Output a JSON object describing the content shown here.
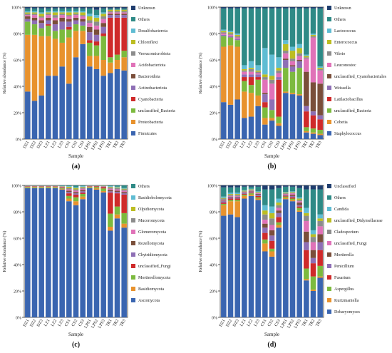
{
  "figure": {
    "panels": [
      {
        "id": "a",
        "caption": "(a)"
      },
      {
        "id": "b",
        "caption": "(b)"
      },
      {
        "id": "c",
        "caption": "(c)"
      },
      {
        "id": "d",
        "caption": "(d)"
      }
    ]
  },
  "chart_data": [
    {
      "id": "a",
      "type": "bar",
      "stacked": true,
      "caption": "(a)",
      "xlabel": "Sample",
      "ylabel": "Relative abundance (%)",
      "ylim": [
        0,
        100
      ],
      "yticks": [
        "0%",
        "20%",
        "40%",
        "60%",
        "80%",
        "100%"
      ],
      "categories": [
        "DZ1",
        "DZ2",
        "DZ3",
        "LZ1",
        "LZ2",
        "LZ3",
        "CS1",
        "CS2",
        "CS3",
        "LPS1",
        "LPS2",
        "LPS3",
        "TR1",
        "TR2",
        "TR3"
      ],
      "series": [
        {
          "name": "Firmicutes",
          "color": "#3a65b0",
          "values": [
            36,
            29,
            33,
            48,
            48,
            55,
            42,
            62,
            72,
            55,
            53,
            48,
            50,
            53,
            52
          ]
        },
        {
          "name": "Proteobacteria",
          "color": "#e8922d",
          "values": [
            43,
            50,
            45,
            30,
            28,
            18,
            35,
            20,
            10,
            8,
            10,
            12,
            8,
            7,
            10
          ]
        },
        {
          "name": "unclassified_Bacteria",
          "color": "#7cba3e",
          "values": [
            10,
            8,
            6,
            8,
            6,
            10,
            6,
            5,
            4,
            10,
            8,
            18,
            4,
            4,
            5
          ]
        },
        {
          "name": "Cyanobacteria",
          "color": "#cf2a2a",
          "values": [
            0,
            0,
            0,
            1,
            0,
            0,
            2,
            0,
            0,
            2,
            3,
            2,
            30,
            28,
            25
          ]
        },
        {
          "name": "Actinobacteriota",
          "color": "#8e6fb5",
          "values": [
            2,
            3,
            4,
            3,
            5,
            6,
            4,
            3,
            3,
            6,
            5,
            5,
            2,
            2,
            2
          ]
        },
        {
          "name": "Bacteroidota",
          "color": "#7a4e3a",
          "values": [
            2,
            2,
            2,
            2,
            3,
            3,
            2,
            2,
            2,
            4,
            4,
            3,
            1,
            1,
            1
          ]
        },
        {
          "name": "Acidobacteriota",
          "color": "#e072b8",
          "values": [
            1,
            2,
            2,
            2,
            2,
            2,
            2,
            2,
            2,
            3,
            3,
            3,
            1,
            1,
            1
          ]
        },
        {
          "name": "Verrucomicrobiota",
          "color": "#8c8c8c",
          "values": [
            1,
            1,
            1,
            1,
            2,
            1,
            1,
            1,
            1,
            2,
            3,
            2,
            1,
            1,
            1
          ]
        },
        {
          "name": "Chloroflexi",
          "color": "#bcbd22",
          "values": [
            1,
            1,
            2,
            1,
            2,
            1,
            2,
            1,
            2,
            3,
            3,
            2,
            1,
            1,
            1
          ]
        },
        {
          "name": "Desulfobacterota",
          "color": "#5fbcd3",
          "values": [
            1,
            1,
            1,
            1,
            1,
            1,
            1,
            1,
            1,
            2,
            2,
            1,
            0,
            0,
            0
          ]
        },
        {
          "name": "Others",
          "color": "#2e8a86",
          "values": [
            2,
            2,
            3,
            2,
            2,
            2,
            2,
            2,
            2,
            4,
            4,
            3,
            1,
            1,
            1
          ]
        },
        {
          "name": "Unknown",
          "color": "#1f3d6e",
          "values": [
            1,
            1,
            1,
            1,
            1,
            1,
            1,
            1,
            1,
            1,
            2,
            1,
            1,
            1,
            1
          ]
        }
      ]
    },
    {
      "id": "b",
      "type": "bar",
      "stacked": true,
      "caption": "(b)",
      "xlabel": "Sample",
      "ylabel": "Relative abundance (%)",
      "ylim": [
        0,
        100
      ],
      "yticks": [
        "0%",
        "20%",
        "40%",
        "60%",
        "80%",
        "100%"
      ],
      "categories": [
        "DZ1",
        "DZ2",
        "DZ3",
        "LZ1",
        "LZ2",
        "LZ3",
        "CS1",
        "CS2",
        "CS3",
        "LPS1",
        "LPS2",
        "LPS3",
        "TR1",
        "TR2",
        "TR3"
      ],
      "series": [
        {
          "name": "Staphylococcus",
          "color": "#3a65b0",
          "values": [
            28,
            26,
            30,
            16,
            17,
            25,
            11,
            14,
            10,
            35,
            34,
            33,
            5,
            4,
            3
          ]
        },
        {
          "name": "Cobetia",
          "color": "#e8922d",
          "values": [
            42,
            45,
            40,
            20,
            18,
            8,
            5,
            2,
            2,
            1,
            1,
            1,
            1,
            1,
            1
          ]
        },
        {
          "name": "unclassified_Bacteria",
          "color": "#7cba3e",
          "values": [
            8,
            6,
            5,
            8,
            6,
            12,
            8,
            6,
            5,
            18,
            16,
            20,
            3,
            3,
            3
          ]
        },
        {
          "name": "Latilactobacillus",
          "color": "#cf2a2a",
          "values": [
            0,
            0,
            0,
            3,
            6,
            2,
            4,
            0,
            28,
            0,
            0,
            0,
            12,
            10,
            8
          ]
        },
        {
          "name": "Weissella",
          "color": "#8e6fb5",
          "values": [
            1,
            1,
            1,
            2,
            2,
            2,
            6,
            8,
            2,
            6,
            4,
            5,
            4,
            3,
            3
          ]
        },
        {
          "name": "unclassified_Cyanobacteriales",
          "color": "#7a4e3a",
          "values": [
            0,
            0,
            0,
            0,
            0,
            0,
            1,
            0,
            0,
            1,
            1,
            1,
            26,
            22,
            24
          ]
        },
        {
          "name": "Leuconostoc",
          "color": "#e072b8",
          "values": [
            1,
            1,
            1,
            2,
            2,
            1,
            10,
            12,
            3,
            4,
            3,
            3,
            10,
            34,
            10
          ]
        },
        {
          "name": "Vibrio",
          "color": "#8c8c8c",
          "values": [
            1,
            1,
            1,
            1,
            2,
            1,
            2,
            3,
            2,
            2,
            2,
            2,
            1,
            1,
            1
          ]
        },
        {
          "name": "Enterococcus",
          "color": "#bcbd22",
          "values": [
            1,
            1,
            1,
            1,
            1,
            1,
            2,
            3,
            2,
            5,
            6,
            4,
            1,
            1,
            1
          ]
        },
        {
          "name": "Lactococcus",
          "color": "#5fbcd3",
          "values": [
            1,
            1,
            1,
            3,
            5,
            4,
            20,
            16,
            8,
            3,
            3,
            3,
            1,
            1,
            1
          ]
        },
        {
          "name": "Others",
          "color": "#2e8a86",
          "values": [
            16,
            17,
            19,
            43,
            40,
            43,
            30,
            35,
            37,
            24,
            29,
            27,
            35,
            19,
            44
          ]
        },
        {
          "name": "Unknown",
          "color": "#1f3d6e",
          "values": [
            1,
            1,
            1,
            1,
            1,
            1,
            1,
            1,
            1,
            1,
            1,
            1,
            1,
            1,
            1
          ]
        }
      ]
    },
    {
      "id": "c",
      "type": "bar",
      "stacked": true,
      "caption": "(c)",
      "xlabel": "Sample",
      "ylabel": "Relative abundance (%)",
      "ylim": [
        0,
        100
      ],
      "yticks": [
        "0%",
        "20%",
        "40%",
        "60%",
        "80%",
        "100%"
      ],
      "categories": [
        "DZ1",
        "DZ2",
        "DZ3",
        "LZ1",
        "LZ2",
        "LZ3",
        "CS1",
        "CS2",
        "CS3",
        "LPS1",
        "LPS2",
        "LPS3",
        "TR1",
        "TR2",
        "TR3"
      ],
      "series": [
        {
          "name": "Ascomycota",
          "color": "#3a65b0",
          "values": [
            98,
            98,
            98,
            98,
            98,
            97,
            88,
            85,
            90,
            98,
            97,
            95,
            66,
            75,
            68
          ]
        },
        {
          "name": "Basidiomycota",
          "color": "#e8922d",
          "values": [
            0.5,
            0.5,
            0.5,
            0.5,
            0.5,
            0.5,
            2,
            3,
            2,
            0.5,
            1,
            1,
            3,
            3,
            3
          ]
        },
        {
          "name": "Mortierellomycota",
          "color": "#7cba3e",
          "values": [
            0.5,
            0.5,
            0.5,
            0.5,
            0.5,
            0.5,
            2,
            3,
            2,
            0.5,
            1,
            2,
            10,
            6,
            8
          ]
        },
        {
          "name": "unclassified_Fungi",
          "color": "#cf2a2a",
          "values": [
            0.3,
            0.3,
            0.3,
            0.3,
            0.3,
            0.5,
            2,
            2,
            1,
            0.3,
            0.5,
            1,
            16,
            10,
            14
          ]
        },
        {
          "name": "Chytridiomycota",
          "color": "#8e6fb5",
          "values": [
            0.1,
            0.1,
            0.1,
            0.1,
            0.1,
            0.2,
            1,
            1,
            1,
            0.1,
            0.1,
            0.2,
            1,
            1,
            1
          ]
        },
        {
          "name": "Rozellomycota",
          "color": "#7a4e3a",
          "values": [
            0.1,
            0.1,
            0.1,
            0.1,
            0.1,
            0.2,
            1,
            1,
            1,
            0.1,
            0.1,
            0.2,
            1,
            1,
            1
          ]
        },
        {
          "name": "Glomeromycota",
          "color": "#e072b8",
          "values": [
            0.1,
            0.1,
            0.1,
            0.1,
            0.1,
            0.2,
            1,
            1,
            1,
            0.1,
            0.1,
            0.2,
            1,
            1,
            1
          ]
        },
        {
          "name": "Mucoromycota",
          "color": "#8c8c8c",
          "values": [
            0.1,
            0.1,
            0.1,
            0.1,
            0.1,
            0.2,
            1,
            1,
            1,
            0.1,
            0.1,
            0.2,
            1,
            1,
            1
          ]
        },
        {
          "name": "Olpidiomycota",
          "color": "#bcbd22",
          "values": [
            0.1,
            0.1,
            0.1,
            0.1,
            0.1,
            0.2,
            1,
            1,
            0.5,
            0.1,
            0.1,
            0.2,
            0.5,
            0.5,
            0.5
          ]
        },
        {
          "name": "Basidiobolomycota",
          "color": "#5fbcd3",
          "values": [
            0.1,
            0.1,
            0.1,
            0.1,
            0.1,
            0.2,
            0.5,
            0.5,
            0.5,
            0.1,
            0.1,
            0.2,
            0.5,
            0.5,
            0.5
          ]
        },
        {
          "name": "Others",
          "color": "#2e8a86",
          "values": [
            0.1,
            0.1,
            0.1,
            0.1,
            0.1,
            0.4,
            0.5,
            1.5,
            0.5,
            0.1,
            0.1,
            0.1,
            0.5,
            1,
            2
          ]
        }
      ]
    },
    {
      "id": "d",
      "type": "bar",
      "stacked": true,
      "caption": "(d)",
      "xlabel": "Sample",
      "ylabel": "Relative abundance (%)",
      "ylim": [
        0,
        100
      ],
      "yticks": [
        "0%",
        "20%",
        "40%",
        "60%",
        "80%",
        "100%"
      ],
      "categories": [
        "DZ1",
        "DZ2",
        "DZ3",
        "LZ1",
        "LZ2",
        "LZ3",
        "CS1",
        "CS2",
        "CS3",
        "LPS1",
        "LPS2",
        "LPS3",
        "TR1",
        "TR2",
        "TR3"
      ],
      "series": [
        {
          "name": "Debaryomyces",
          "color": "#3a65b0",
          "values": [
            77,
            78,
            76,
            90,
            92,
            89,
            50,
            46,
            68,
            90,
            88,
            80,
            28,
            20,
            30
          ]
        },
        {
          "name": "Kurtzmaniella",
          "color": "#e8922d",
          "values": [
            8,
            10,
            12,
            2,
            1,
            1,
            6,
            4,
            2,
            1,
            1,
            1,
            1,
            1,
            1
          ]
        },
        {
          "name": "Aspergillus",
          "color": "#7cba3e",
          "values": [
            1,
            1,
            1,
            1,
            1,
            1,
            3,
            2,
            2,
            1,
            1,
            2,
            8,
            10,
            8
          ]
        },
        {
          "name": "Fusarium",
          "color": "#cf2a2a",
          "values": [
            1,
            1,
            1,
            0.5,
            0.5,
            1,
            5,
            6,
            4,
            0.5,
            1,
            1,
            14,
            10,
            12
          ]
        },
        {
          "name": "Penicillium",
          "color": "#8e6fb5",
          "values": [
            1,
            1,
            1,
            0.5,
            0.5,
            1,
            4,
            4,
            3,
            0.5,
            1,
            1,
            6,
            4,
            6
          ]
        },
        {
          "name": "Mortierella",
          "color": "#7a4e3a",
          "values": [
            0.5,
            0.5,
            0.5,
            0.5,
            0.5,
            0.5,
            3,
            4,
            2,
            0.5,
            1,
            2,
            8,
            6,
            6
          ]
        },
        {
          "name": "unclassified_Fungi",
          "color": "#e072b8",
          "values": [
            0.5,
            0.5,
            0.5,
            0.5,
            0.5,
            0.5,
            3,
            4,
            2,
            0.5,
            1,
            1,
            8,
            6,
            6
          ]
        },
        {
          "name": "Cladosporium",
          "color": "#8c8c8c",
          "values": [
            1,
            1,
            1,
            0.5,
            0.5,
            0.5,
            4,
            5,
            2,
            0.5,
            0.5,
            1,
            4,
            4,
            4
          ]
        },
        {
          "name": "unclassified_Didymellaceae",
          "color": "#bcbd22",
          "values": [
            0.5,
            0.5,
            0.5,
            0.5,
            0.5,
            0.5,
            3,
            4,
            2,
            0.5,
            0.5,
            1,
            2,
            2,
            2
          ]
        },
        {
          "name": "Candida",
          "color": "#5fbcd3",
          "values": [
            1,
            1,
            1,
            0.5,
            0.5,
            0.5,
            4,
            5,
            3,
            0.5,
            0.5,
            1,
            4,
            3,
            3
          ]
        },
        {
          "name": "Others",
          "color": "#2e8a86",
          "values": [
            7,
            4,
            4,
            2.5,
            1.5,
            3.5,
            12,
            13,
            8,
            4,
            3.5,
            7,
            14,
            31,
            19
          ]
        },
        {
          "name": "Unclassified",
          "color": "#1f3d6e",
          "values": [
            1.5,
            1.5,
            1.5,
            1,
            1,
            1,
            3,
            3,
            2,
            1,
            1,
            2,
            3,
            3,
            3
          ]
        }
      ]
    }
  ]
}
